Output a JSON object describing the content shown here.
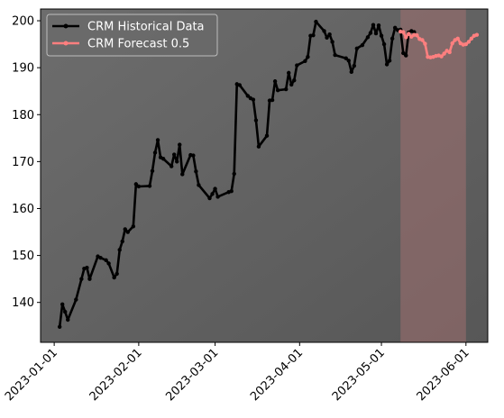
{
  "chart_data": {
    "type": "line",
    "title": "",
    "xlabel": "",
    "ylabel": "",
    "x_type": "date",
    "xlim": [
      "2022-12-27",
      "2023-06-09"
    ],
    "ylim": [
      131.5,
      202.5
    ],
    "x_ticks": [
      "2023-01-01",
      "2023-02-01",
      "2023-03-01",
      "2023-04-01",
      "2023-05-01",
      "2023-06-01"
    ],
    "y_ticks": [
      140,
      150,
      160,
      170,
      180,
      190,
      200
    ],
    "grid": false,
    "legend_position": "top-left",
    "background": {
      "gradient": [
        "#6d6d6d",
        "#575757"
      ]
    },
    "forecast_band": {
      "start": "2023-05-08",
      "end": "2023-06-01",
      "color": "#a07070"
    },
    "series": [
      {
        "name": "CRM Historical Data",
        "color": "#000000",
        "points": [
          [
            "2023-01-03",
            134.8
          ],
          [
            "2023-01-04",
            139.6
          ],
          [
            "2023-01-05",
            138.0
          ],
          [
            "2023-01-06",
            136.3
          ],
          [
            "2023-01-09",
            140.6
          ],
          [
            "2023-01-11",
            145.0
          ],
          [
            "2023-01-12",
            147.2
          ],
          [
            "2023-01-13",
            147.4
          ],
          [
            "2023-01-14",
            145.0
          ],
          [
            "2023-01-17",
            149.8
          ],
          [
            "2023-01-18",
            149.5
          ],
          [
            "2023-01-20",
            149.0
          ],
          [
            "2023-01-21",
            148.3
          ],
          [
            "2023-01-23",
            145.3
          ],
          [
            "2023-01-24",
            146.1
          ],
          [
            "2023-01-25",
            151.2
          ],
          [
            "2023-01-26",
            153.0
          ],
          [
            "2023-01-27",
            155.6
          ],
          [
            "2023-01-28",
            155.0
          ],
          [
            "2023-01-30",
            156.2
          ],
          [
            "2023-01-31",
            165.2
          ],
          [
            "2023-02-01",
            164.7
          ],
          [
            "2023-02-05",
            164.8
          ],
          [
            "2023-02-06",
            168.0
          ],
          [
            "2023-02-07",
            171.9
          ],
          [
            "2023-02-08",
            174.6
          ],
          [
            "2023-02-09",
            170.9
          ],
          [
            "2023-02-10",
            170.6
          ],
          [
            "2023-02-13",
            169.0
          ],
          [
            "2023-02-14",
            171.5
          ],
          [
            "2023-02-15",
            170.0
          ],
          [
            "2023-02-16",
            173.6
          ],
          [
            "2023-02-17",
            167.3
          ],
          [
            "2023-02-20",
            171.4
          ],
          [
            "2023-02-21",
            171.3
          ],
          [
            "2023-02-22",
            167.9
          ],
          [
            "2023-02-23",
            165.0
          ],
          [
            "2023-02-27",
            162.2
          ],
          [
            "2023-02-28",
            163.1
          ],
          [
            "2023-03-01",
            164.2
          ],
          [
            "2023-03-02",
            162.5
          ],
          [
            "2023-03-06",
            163.5
          ],
          [
            "2023-03-07",
            163.7
          ],
          [
            "2023-03-08",
            167.4
          ],
          [
            "2023-03-09",
            186.5
          ],
          [
            "2023-03-10",
            186.3
          ],
          [
            "2023-03-13",
            184.0
          ],
          [
            "2023-03-14",
            183.5
          ],
          [
            "2023-03-15",
            183.2
          ],
          [
            "2023-03-16",
            178.8
          ],
          [
            "2023-03-17",
            173.2
          ],
          [
            "2023-03-20",
            175.5
          ],
          [
            "2023-03-21",
            183.0
          ],
          [
            "2023-03-22",
            183.1
          ],
          [
            "2023-03-23",
            187.1
          ],
          [
            "2023-03-24",
            185.2
          ],
          [
            "2023-03-27",
            185.4
          ],
          [
            "2023-03-28",
            188.9
          ],
          [
            "2023-03-29",
            186.4
          ],
          [
            "2023-03-30",
            187.3
          ],
          [
            "2023-03-31",
            190.5
          ],
          [
            "2023-04-03",
            191.4
          ],
          [
            "2023-04-04",
            192.3
          ],
          [
            "2023-04-05",
            196.8
          ],
          [
            "2023-04-06",
            196.9
          ],
          [
            "2023-04-07",
            199.8
          ],
          [
            "2023-04-10",
            197.8
          ],
          [
            "2023-04-11",
            196.4
          ],
          [
            "2023-04-12",
            197.1
          ],
          [
            "2023-04-13",
            195.5
          ],
          [
            "2023-04-14",
            192.7
          ],
          [
            "2023-04-18",
            192.0
          ],
          [
            "2023-04-19",
            191.5
          ],
          [
            "2023-04-20",
            189.1
          ],
          [
            "2023-04-21",
            190.4
          ],
          [
            "2023-04-22",
            194.1
          ],
          [
            "2023-04-24",
            194.8
          ],
          [
            "2023-04-26",
            196.5
          ],
          [
            "2023-04-27",
            197.4
          ],
          [
            "2023-04-28",
            199.1
          ],
          [
            "2023-04-29",
            197.3
          ],
          [
            "2023-04-30",
            199.0
          ],
          [
            "2023-05-01",
            196.8
          ],
          [
            "2023-05-02",
            195.0
          ],
          [
            "2023-05-03",
            190.7
          ],
          [
            "2023-05-04",
            191.5
          ],
          [
            "2023-05-05",
            196.2
          ],
          [
            "2023-05-06",
            198.5
          ],
          [
            "2023-05-07",
            198.0
          ],
          [
            "2023-05-08",
            198.1
          ],
          [
            "2023-05-09",
            193.1
          ],
          [
            "2023-05-10",
            192.6
          ],
          [
            "2023-05-11",
            197.5
          ],
          [
            "2023-05-12",
            197.8
          ],
          [
            "2023-05-13",
            197.6
          ]
        ]
      },
      {
        "name": "CRM Forecast 0.5",
        "color": "#ff7f7f",
        "points": [
          [
            "2023-05-08",
            197.7
          ],
          [
            "2023-05-09",
            197.6
          ],
          [
            "2023-05-10",
            196.5
          ],
          [
            "2023-05-11",
            197.2
          ],
          [
            "2023-05-12",
            196.6
          ],
          [
            "2023-05-13",
            197.0
          ],
          [
            "2023-05-14",
            196.9
          ],
          [
            "2023-05-15",
            196.1
          ],
          [
            "2023-05-16",
            195.9
          ],
          [
            "2023-05-17",
            195.1
          ],
          [
            "2023-05-18",
            192.3
          ],
          [
            "2023-05-19",
            192.2
          ],
          [
            "2023-05-20",
            192.3
          ],
          [
            "2023-05-21",
            192.5
          ],
          [
            "2023-05-22",
            192.6
          ],
          [
            "2023-05-23",
            192.4
          ],
          [
            "2023-05-24",
            193.0
          ],
          [
            "2023-05-25",
            193.6
          ],
          [
            "2023-05-26",
            193.3
          ],
          [
            "2023-05-27",
            195.2
          ],
          [
            "2023-05-28",
            195.9
          ],
          [
            "2023-05-29",
            196.2
          ],
          [
            "2023-05-30",
            195.2
          ],
          [
            "2023-05-31",
            194.9
          ],
          [
            "2023-06-01",
            195.0
          ],
          [
            "2023-06-02",
            195.5
          ],
          [
            "2023-06-03",
            196.2
          ],
          [
            "2023-06-04",
            196.8
          ],
          [
            "2023-06-05",
            197.0
          ]
        ]
      }
    ]
  }
}
